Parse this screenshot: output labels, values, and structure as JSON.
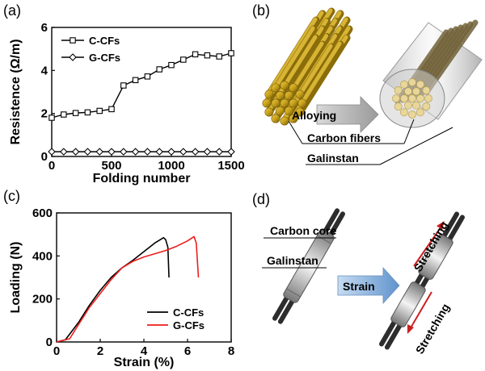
{
  "panels": {
    "a": "(a)",
    "b": "(b)",
    "c": "(c)",
    "d": "(d)"
  },
  "diagram_b": {
    "arrow_text": "Alloying",
    "label_fibers": "Carbon fibers",
    "label_galinstan": "Galinstan"
  },
  "diagram_d": {
    "label_core": "Carbon core",
    "label_galinstan": "Galinstan",
    "arrow_text": "Strain",
    "stretch_top": "Stretching",
    "stretch_bottom": "Stretching"
  },
  "colors": {
    "fiber_gold": "#c9a21a",
    "arrow_blue": "#8fb4dc",
    "arrow_gray": "#b5b5b5",
    "stretch_red": "#cc1f1f"
  },
  "chart_data": [
    {
      "type": "line",
      "panel": "a",
      "xlabel": "Folding number",
      "ylabel": "Resistence (Ω/m)",
      "xlim": [
        0,
        1500
      ],
      "ylim": [
        0,
        6
      ],
      "xticks": [
        "0",
        "500",
        "1000",
        "1500"
      ],
      "yticks": [
        "0",
        "2",
        "4",
        "6"
      ],
      "legend_position": "top-left",
      "series": [
        {
          "name": "C-CFs",
          "marker": "square",
          "x": [
            0,
            100,
            200,
            300,
            400,
            500,
            600,
            700,
            800,
            900,
            1000,
            1100,
            1200,
            1300,
            1400,
            1500
          ],
          "y": [
            1.8,
            1.95,
            2.02,
            2.05,
            2.12,
            2.2,
            3.3,
            3.55,
            3.72,
            4.05,
            4.25,
            4.5,
            4.75,
            4.7,
            4.65,
            4.8
          ]
        },
        {
          "name": "G-CFs",
          "marker": "diamond",
          "x": [
            0,
            100,
            200,
            300,
            400,
            500,
            600,
            700,
            800,
            900,
            1000,
            1100,
            1200,
            1300,
            1400,
            1500
          ],
          "y": [
            0.22,
            0.22,
            0.22,
            0.22,
            0.22,
            0.22,
            0.22,
            0.22,
            0.22,
            0.22,
            0.22,
            0.22,
            0.22,
            0.22,
            0.22,
            0.22
          ]
        }
      ]
    },
    {
      "type": "line",
      "panel": "c",
      "xlabel": "Strain (%)",
      "ylabel": "Loading (N)",
      "xlim": [
        0,
        8
      ],
      "ylim": [
        0,
        600
      ],
      "xticks": [
        "0",
        "2",
        "4",
        "6",
        "8"
      ],
      "yticks": [
        "0",
        "200",
        "400",
        "600"
      ],
      "legend_position": "bottom-right",
      "series": [
        {
          "name": "C-CFs",
          "color": "#000000",
          "x": [
            0,
            0.4,
            1.0,
            1.5,
            2.0,
            2.5,
            3.0,
            3.5,
            4.0,
            4.5,
            4.9,
            5.0,
            5.1,
            5.15
          ],
          "y": [
            0,
            10,
            90,
            170,
            240,
            300,
            345,
            380,
            420,
            460,
            485,
            475,
            440,
            300
          ]
        },
        {
          "name": "G-CFs",
          "color": "#ee1c1c",
          "x": [
            0,
            0.6,
            1.0,
            1.5,
            2.0,
            2.5,
            3.0,
            3.5,
            4.0,
            4.5,
            5.0,
            5.5,
            6.0,
            6.3,
            6.4,
            6.5
          ],
          "y": [
            0,
            15,
            80,
            160,
            225,
            290,
            345,
            375,
            395,
            410,
            425,
            445,
            470,
            490,
            460,
            300
          ]
        }
      ]
    }
  ]
}
